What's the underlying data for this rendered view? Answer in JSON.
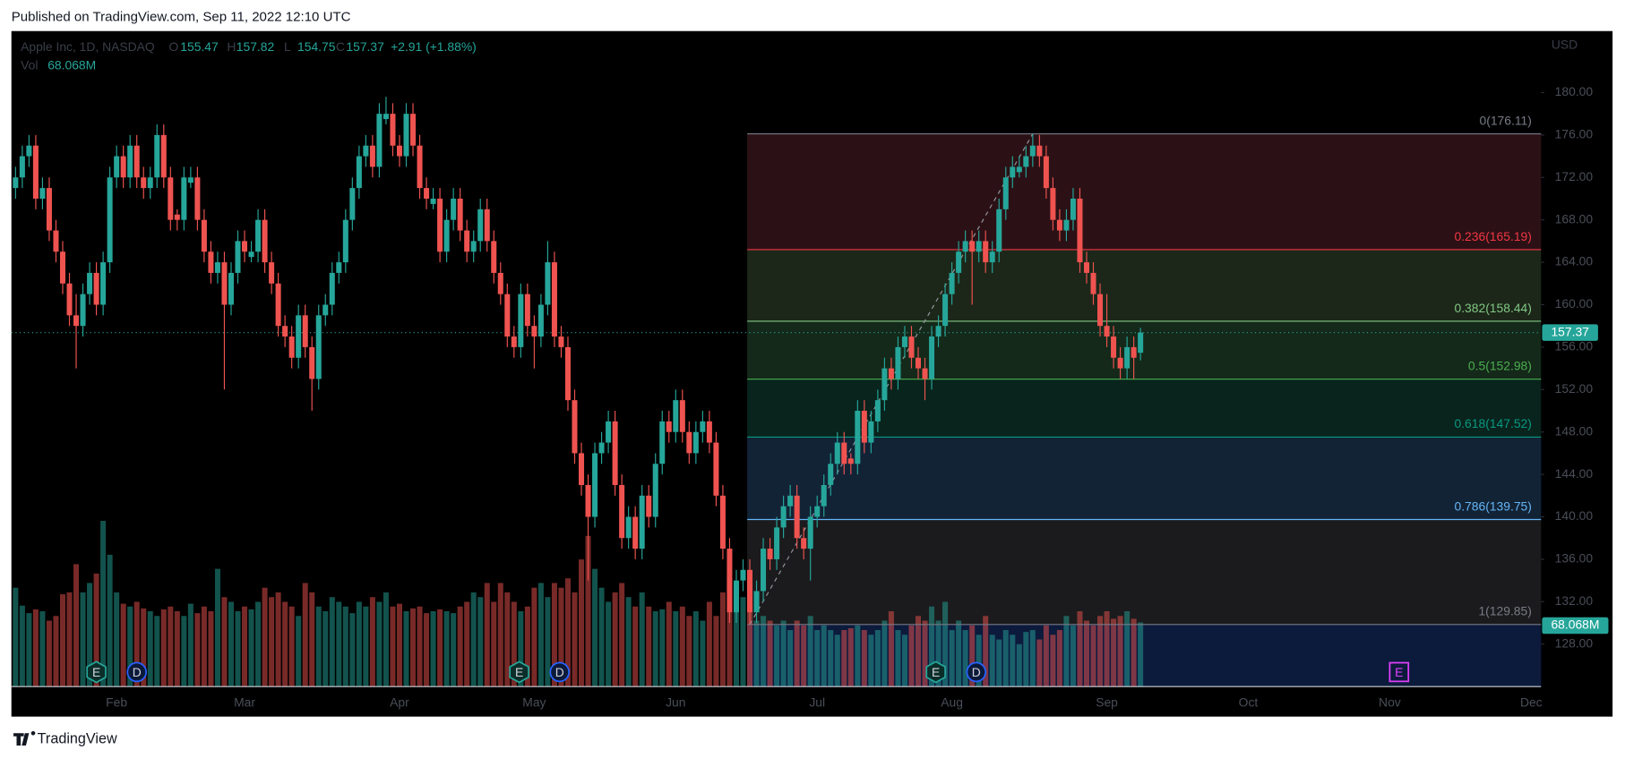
{
  "header": "Published on TradingView.com, Sep 11, 2022 12:10 UTC",
  "footer": "TradingView",
  "chart_data": {
    "type": "candlestick",
    "legend": {
      "symbol": "Apple Inc, 1D, NASDAQ",
      "o": "O",
      "h": "H",
      "l": "L",
      "c": "C",
      "change": "+2.91 (+1.88%)",
      "volume": "Vol"
    },
    "currency": "USD",
    "up_color": "#26a69a",
    "down_color": "#ef5350",
    "ylim": [
      124,
      185.8
    ],
    "yticks": [
      {
        "value": 128,
        "label": "128.00"
      },
      {
        "value": 132,
        "label": "132.00"
      },
      {
        "value": 136,
        "label": "136.00"
      },
      {
        "value": 140,
        "label": "140.00"
      },
      {
        "value": 144,
        "label": "144.00"
      },
      {
        "value": 148,
        "label": "148.00"
      },
      {
        "value": 152,
        "label": "152.00"
      },
      {
        "value": 156,
        "label": "156.00"
      },
      {
        "value": 160,
        "label": "160.00"
      },
      {
        "value": 164,
        "label": "164.00"
      },
      {
        "value": 168,
        "label": "168.00"
      },
      {
        "value": 172,
        "label": "172.00"
      },
      {
        "value": 176,
        "label": "176.00"
      },
      {
        "value": 180,
        "label": "180.00"
      }
    ],
    "categories": [
      null,
      null,
      null,
      null,
      null,
      null,
      null,
      null,
      null,
      null,
      null,
      null,
      null,
      null,
      null,
      "Feb",
      null,
      null,
      null,
      null,
      null,
      null,
      null,
      null,
      null,
      null,
      null,
      null,
      null,
      null,
      null,
      null,
      null,
      null,
      "Mar",
      null,
      null,
      null,
      null,
      null,
      null,
      null,
      null,
      null,
      null,
      null,
      null,
      null,
      null,
      null,
      null,
      null,
      null,
      null,
      null,
      null,
      null,
      "Apr",
      null,
      null,
      null,
      null,
      null,
      null,
      null,
      null,
      null,
      null,
      null,
      null,
      null,
      null,
      null,
      null,
      null,
      null,
      null,
      "May",
      null,
      null,
      null,
      null,
      null,
      null,
      null,
      null,
      null,
      null,
      null,
      null,
      null,
      null,
      null,
      null,
      null,
      null,
      null,
      null,
      "Jun",
      null,
      null,
      null,
      null,
      null,
      null,
      null,
      null,
      null,
      null,
      null,
      null,
      null,
      null,
      null,
      null,
      null,
      null,
      null,
      null,
      "Jul",
      null,
      null,
      null,
      null,
      null,
      null,
      null,
      null,
      null,
      null,
      null,
      null,
      null,
      null,
      null,
      null,
      null,
      null,
      null,
      "Aug",
      null,
      null,
      null,
      null,
      null,
      null,
      null,
      null,
      null,
      null,
      null,
      null,
      null,
      null,
      null,
      null,
      null,
      null,
      null,
      null,
      null,
      null,
      "Sep",
      null,
      null,
      null,
      null,
      null,
      null,
      null,
      null,
      null,
      null,
      null,
      null,
      null,
      null,
      null,
      null,
      null,
      null,
      null,
      null,
      "Oct",
      null,
      null,
      null,
      null,
      null,
      null,
      null,
      null,
      null,
      null,
      null,
      null,
      null,
      null,
      null,
      null,
      null,
      null,
      null,
      null,
      "Nov",
      null,
      null,
      null,
      null,
      null,
      null,
      null,
      null,
      null,
      null,
      null,
      null,
      null,
      null,
      null,
      null,
      null,
      null,
      null,
      null,
      "Dec",
      null
    ],
    "candles": [
      [
        171,
        173,
        170,
        172
      ],
      [
        172,
        175,
        171,
        174
      ],
      [
        174,
        176,
        173,
        175
      ],
      [
        175,
        176,
        169,
        170
      ],
      [
        170,
        172,
        169,
        171
      ],
      [
        171,
        172,
        166,
        167
      ],
      [
        167,
        168,
        164,
        165
      ],
      [
        165,
        166,
        161,
        162
      ],
      [
        162,
        163,
        158,
        159
      ],
      [
        159,
        161,
        154,
        158
      ],
      [
        158,
        162,
        157,
        161
      ],
      [
        161,
        164,
        160,
        163
      ],
      [
        163,
        164,
        159,
        160
      ],
      [
        160,
        165,
        159,
        164
      ],
      [
        164,
        173,
        163,
        172
      ],
      [
        172,
        175,
        171,
        174
      ],
      [
        174,
        175,
        171,
        172
      ],
      [
        172,
        176,
        171,
        175
      ],
      [
        175,
        176,
        171,
        172
      ],
      [
        172,
        173,
        170,
        171
      ],
      [
        171,
        173,
        170,
        172
      ],
      [
        172,
        177,
        171,
        176
      ],
      [
        176,
        177,
        171,
        172
      ],
      [
        172,
        173,
        167,
        168
      ],
      [
        168.5,
        169,
        167,
        168
      ],
      [
        168,
        173,
        167,
        172
      ],
      [
        171.5,
        173,
        171,
        172
      ],
      [
        172,
        173,
        167,
        168
      ],
      [
        168,
        169,
        164,
        165
      ],
      [
        165,
        166,
        162,
        163
      ],
      [
        163,
        165,
        162,
        164
      ],
      [
        164,
        165,
        152,
        160
      ],
      [
        160,
        164,
        159,
        163
      ],
      [
        163,
        167,
        162,
        166
      ],
      [
        166,
        167,
        164,
        165
      ],
      [
        164.5,
        166,
        164,
        165
      ],
      [
        165,
        169,
        164,
        168
      ],
      [
        168,
        169,
        163,
        164
      ],
      [
        164,
        165,
        161,
        162
      ],
      [
        162,
        163,
        157,
        158
      ],
      [
        158,
        159,
        156,
        157
      ],
      [
        157,
        158,
        154,
        155
      ],
      [
        155,
        160,
        154,
        159
      ],
      [
        159,
        160,
        155,
        156
      ],
      [
        156,
        157,
        150,
        153
      ],
      [
        153,
        160,
        152,
        159
      ],
      [
        159,
        161,
        158,
        160
      ],
      [
        160,
        164,
        159,
        163
      ],
      [
        163,
        165,
        162,
        164
      ],
      [
        164,
        169,
        163,
        168
      ],
      [
        168,
        172,
        167,
        171
      ],
      [
        171,
        175,
        170,
        174
      ],
      [
        174,
        176,
        173,
        175
      ],
      [
        175,
        176,
        172,
        173
      ],
      [
        173,
        179,
        172,
        178
      ],
      [
        177.5,
        179.6,
        177,
        178
      ],
      [
        178,
        179,
        174,
        175
      ],
      [
        175,
        176,
        173,
        174
      ],
      [
        174,
        179,
        173,
        178
      ],
      [
        178,
        179,
        174,
        175
      ],
      [
        175,
        176,
        170,
        171
      ],
      [
        171,
        172,
        169,
        170
      ],
      [
        169.5,
        171,
        169,
        170
      ],
      [
        170,
        171,
        164,
        165
      ],
      [
        165,
        169,
        164,
        168
      ],
      [
        168,
        171,
        167,
        170
      ],
      [
        170,
        171,
        166,
        167
      ],
      [
        167,
        168,
        164,
        165
      ],
      [
        165,
        167,
        164,
        166
      ],
      [
        166,
        170,
        165,
        169
      ],
      [
        169,
        170,
        165,
        166
      ],
      [
        166,
        167,
        162,
        163
      ],
      [
        163,
        164,
        160,
        161
      ],
      [
        161,
        162,
        156,
        157
      ],
      [
        157,
        158,
        155,
        156
      ],
      [
        156,
        162,
        155,
        161
      ],
      [
        161,
        162,
        157,
        158
      ],
      [
        158,
        159,
        154,
        157
      ],
      [
        157,
        161,
        156,
        160
      ],
      [
        160,
        166,
        159,
        164
      ],
      [
        164,
        165,
        156,
        157
      ],
      [
        157,
        158,
        155,
        156
      ],
      [
        156,
        157,
        150,
        151
      ],
      [
        151,
        152,
        145,
        146
      ],
      [
        146,
        147,
        142,
        143
      ],
      [
        143,
        144,
        134,
        140
      ],
      [
        140,
        147,
        139,
        146
      ],
      [
        146,
        148,
        145,
        147
      ],
      [
        147,
        150,
        146,
        149
      ],
      [
        149,
        150,
        142,
        143
      ],
      [
        143,
        144,
        137,
        138
      ],
      [
        138,
        141,
        137,
        140
      ],
      [
        140,
        141,
        136,
        137
      ],
      [
        137,
        143,
        136,
        142
      ],
      [
        142,
        143,
        139,
        140
      ],
      [
        140,
        146,
        139,
        145
      ],
      [
        145,
        150,
        144,
        149
      ],
      [
        149,
        150,
        147,
        148
      ],
      [
        148,
        152,
        147,
        151
      ],
      [
        151,
        152,
        147,
        148
      ],
      [
        148,
        149,
        145,
        146
      ],
      [
        146,
        149,
        145,
        148
      ],
      [
        148,
        150,
        147,
        149
      ],
      [
        149,
        150,
        146,
        147
      ],
      [
        147,
        148,
        141,
        142
      ],
      [
        142,
        143,
        136,
        137
      ],
      [
        137,
        138,
        130,
        131
      ],
      [
        131,
        135,
        130,
        134
      ],
      [
        134,
        136,
        133,
        135
      ],
      [
        135,
        136,
        129.85,
        131
      ],
      [
        131,
        134,
        130,
        133
      ],
      [
        133,
        138,
        132,
        137
      ],
      [
        137,
        138,
        135,
        136
      ],
      [
        136,
        140,
        135,
        139
      ],
      [
        139,
        142,
        138,
        141
      ],
      [
        141,
        143,
        140,
        142
      ],
      [
        142,
        143,
        137,
        138
      ],
      [
        138,
        139,
        136,
        137
      ],
      [
        137,
        141,
        134,
        140
      ],
      [
        140,
        142,
        139,
        141
      ],
      [
        141,
        144,
        140,
        143
      ],
      [
        143,
        146,
        142,
        145
      ],
      [
        145,
        148,
        144,
        147
      ],
      [
        147,
        148,
        144,
        145
      ],
      [
        145.5,
        146,
        144,
        145
      ],
      [
        145,
        151,
        144,
        150
      ],
      [
        150,
        151,
        146,
        147
      ],
      [
        147,
        150,
        146,
        149
      ],
      [
        149,
        152,
        148,
        151
      ],
      [
        151,
        155,
        150,
        154
      ],
      [
        154,
        155,
        152,
        153
      ],
      [
        153,
        157,
        152,
        156
      ],
      [
        156,
        158,
        155,
        157
      ],
      [
        157,
        158,
        154,
        155
      ],
      [
        155,
        156,
        153,
        154
      ],
      [
        154,
        155,
        151,
        153
      ],
      [
        153,
        158,
        152,
        157
      ],
      [
        157,
        159,
        156,
        158
      ],
      [
        158,
        162,
        157,
        161
      ],
      [
        161,
        164,
        160,
        163
      ],
      [
        163,
        166,
        162,
        165
      ],
      [
        165,
        167,
        164,
        166
      ],
      [
        166,
        167,
        160,
        165
      ],
      [
        165,
        167,
        164,
        166
      ],
      [
        166,
        167,
        163,
        164
      ],
      [
        164,
        166,
        163,
        165
      ],
      [
        165,
        170,
        164,
        169
      ],
      [
        169,
        173,
        168,
        172
      ],
      [
        172,
        174,
        171,
        173
      ],
      [
        172.5,
        174,
        172,
        173
      ],
      [
        173,
        175,
        172,
        174
      ],
      [
        174,
        176.11,
        173,
        175
      ],
      [
        175,
        176,
        173,
        174
      ],
      [
        174,
        175,
        170,
        171
      ],
      [
        171,
        172,
        167,
        168
      ],
      [
        168,
        169,
        166,
        167
      ],
      [
        167,
        169,
        166,
        168
      ],
      [
        168,
        171,
        167,
        170
      ],
      [
        170,
        171,
        163,
        164
      ],
      [
        164,
        165,
        162,
        163
      ],
      [
        163,
        164,
        160,
        161
      ],
      [
        161,
        162,
        157,
        158
      ],
      [
        158,
        161,
        156,
        157
      ],
      [
        157,
        158,
        154,
        155
      ],
      [
        155,
        156,
        153,
        154
      ],
      [
        154,
        157,
        153,
        156
      ],
      [
        156,
        157,
        153,
        155
      ],
      [
        155.47,
        157.82,
        154.75,
        157.37
      ],
      null,
      null,
      null,
      null,
      null,
      null,
      null,
      null,
      null,
      null,
      null,
      null,
      null,
      null,
      null,
      null,
      null,
      null,
      null,
      null,
      null,
      null,
      null,
      null,
      null,
      null,
      null,
      null,
      null,
      null,
      null,
      null,
      null,
      null,
      null,
      null,
      null,
      null,
      null,
      null,
      null,
      null,
      null,
      null,
      null,
      null,
      null,
      null,
      null,
      null,
      null,
      null,
      null,
      null,
      null,
      null,
      null,
      null,
      null
    ],
    "volume": [
      105,
      86,
      78,
      82,
      80,
      70,
      75,
      98,
      100,
      130,
      100,
      110,
      120,
      176,
      140,
      100,
      88,
      85,
      90,
      83,
      80,
      75,
      82,
      85,
      80,
      75,
      88,
      78,
      85,
      80,
      125,
      95,
      90,
      80,
      85,
      82,
      90,
      105,
      95,
      100,
      90,
      85,
      75,
      110,
      100,
      85,
      80,
      95,
      90,
      85,
      78,
      90,
      85,
      95,
      90,
      100,
      85,
      88,
      80,
      83,
      85,
      78,
      80,
      82,
      80,
      78,
      85,
      90,
      100,
      95,
      110,
      90,
      110,
      100,
      90,
      80,
      85,
      105,
      110,
      95,
      110,
      105,
      115,
      100,
      135,
      160,
      125,
      105,
      90,
      100,
      110,
      95,
      85,
      100,
      85,
      80,
      82,
      90,
      80,
      85,
      75,
      80,
      70,
      90,
      75,
      100,
      115,
      105,
      95,
      80,
      70,
      75,
      70,
      65,
      70,
      60,
      70,
      65,
      75,
      60,
      65,
      60,
      55,
      60,
      62,
      65,
      60,
      55,
      60,
      70,
      80,
      60,
      55,
      65,
      75,
      70,
      85,
      70,
      90,
      60,
      70,
      60,
      65,
      55,
      75,
      55,
      50,
      60,
      55,
      45,
      58,
      60,
      50,
      65,
      55,
      60,
      75,
      65,
      80,
      70,
      65,
      75,
      80,
      72,
      75,
      80,
      72,
      68.068,
      null,
      null,
      null,
      null,
      null,
      null,
      null,
      null,
      null,
      null,
      null,
      null,
      null,
      null,
      null,
      null,
      null,
      null,
      null,
      null,
      null,
      null,
      null,
      null,
      null,
      null,
      null,
      null,
      null,
      null,
      null,
      null,
      null,
      null,
      null,
      null,
      null,
      null,
      null,
      null,
      null,
      null,
      null,
      null,
      null,
      null,
      null,
      null,
      null,
      null,
      null,
      null,
      null,
      null,
      null,
      null,
      null,
      null,
      null
    ],
    "volume_last_label": "68.068M",
    "fib_levels": [
      {
        "label": "0(176.11)",
        "price": 176.11,
        "color": "#787b86",
        "fill": "#2b1115"
      },
      {
        "label": "0.236(165.19)",
        "price": 165.19,
        "color": "#f23645",
        "fill": "#1c2719"
      },
      {
        "label": "0.382(158.44)",
        "price": 158.44,
        "color": "#81c784",
        "fill": "#14291a"
      },
      {
        "label": "0.5(152.98)",
        "price": 152.98,
        "color": "#4caf50",
        "fill": "#08241d"
      },
      {
        "label": "0.618(147.52)",
        "price": 147.52,
        "color": "#089981",
        "fill": "#122336"
      },
      {
        "label": "0.786(139.75)",
        "price": 139.75,
        "color": "#64b5f6",
        "fill": "#1b1b1d"
      },
      {
        "label": "1(129.85)",
        "price": 129.85,
        "color": "#787b86",
        "fill": "#0c1a3c"
      }
    ],
    "events": [
      "E",
      "D",
      "E",
      "D",
      "E",
      "D",
      "E"
    ]
  }
}
